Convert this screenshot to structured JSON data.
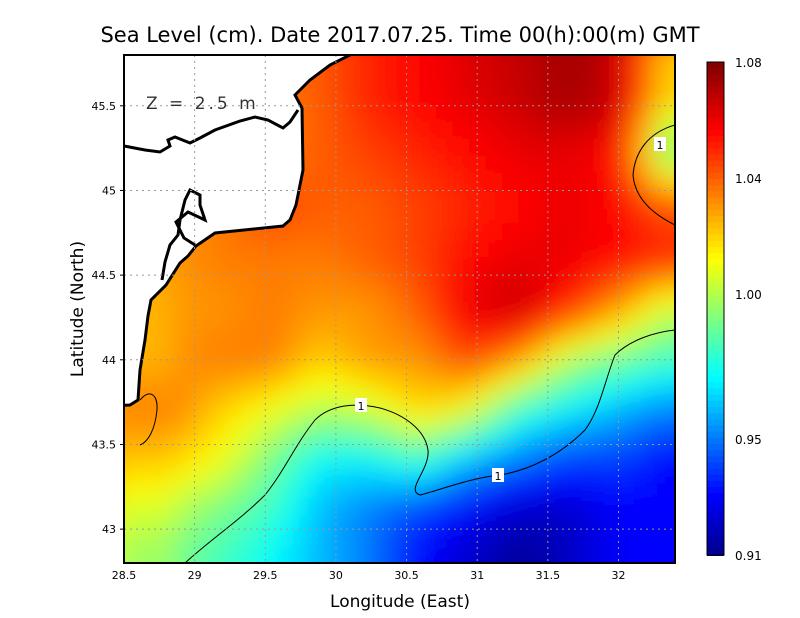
{
  "chart_data": {
    "type": "heatmap",
    "title": "Sea Level (cm). Date 2017.07.25. Time 00(h):00(m) GMT",
    "xlabel": "Longitude (East)",
    "ylabel": "Latitude (North)",
    "annotation": "Z = 2.5 m",
    "contour_label": "1",
    "xlim": [
      28.5,
      32.4
    ],
    "ylim": [
      42.8,
      45.8
    ],
    "xticks": [
      "28.5",
      "29",
      "29.5",
      "30",
      "30.5",
      "31",
      "31.5",
      "32"
    ],
    "xtick_values": [
      28.5,
      29,
      29.5,
      30,
      30.5,
      31,
      31.5,
      32
    ],
    "yticks": [
      "45.5",
      "45",
      "44.5",
      "44",
      "43.5",
      "43"
    ],
    "ytick_values": [
      45.5,
      45,
      44.5,
      44,
      43.5,
      43
    ],
    "grid": true,
    "colorbar": {
      "range": [
        0.91,
        1.08
      ],
      "ticks": [
        "1.08",
        "1.04",
        "1.00",
        "0.95",
        "0.91"
      ],
      "tick_values": [
        1.08,
        1.04,
        1.0,
        0.95,
        0.91
      ],
      "colormap": "jet"
    },
    "x": [
      28.5,
      28.85,
      29.2,
      29.55,
      29.9,
      30.25,
      30.6,
      30.95,
      31.3,
      31.65,
      32.0,
      32.4
    ],
    "y": [
      45.8,
      45.5,
      45.2,
      44.9,
      44.6,
      44.3,
      44.0,
      43.7,
      43.4,
      43.1,
      42.8
    ],
    "z": [
      [
        1.03,
        1.03,
        1.03,
        1.035,
        1.045,
        1.055,
        1.06,
        1.07,
        1.075,
        1.08,
        1.075,
        1.07
      ],
      [
        1.03,
        1.03,
        1.03,
        1.035,
        1.04,
        1.05,
        1.055,
        1.06,
        1.065,
        1.072,
        1.065,
        1.0
      ],
      [
        1.03,
        1.03,
        1.03,
        1.035,
        1.04,
        1.045,
        1.05,
        1.055,
        1.06,
        1.06,
        1.055,
        0.98
      ],
      [
        1.03,
        1.03,
        1.035,
        1.045,
        1.04,
        1.04,
        1.045,
        1.05,
        1.055,
        1.06,
        1.055,
        1.04
      ],
      [
        1.02,
        1.03,
        1.035,
        1.035,
        1.035,
        1.04,
        1.045,
        1.055,
        1.06,
        1.06,
        1.055,
        1.05
      ],
      [
        1.0,
        1.03,
        1.03,
        1.035,
        1.03,
        1.03,
        1.04,
        1.06,
        1.068,
        1.05,
        1.03,
        1.0
      ],
      [
        1.0,
        1.03,
        1.035,
        1.035,
        1.02,
        1.03,
        1.03,
        1.045,
        1.03,
        1.0,
        0.99,
        0.98
      ],
      [
        1.03,
        1.035,
        1.02,
        1.01,
        1.0,
        1.005,
        1.02,
        1.01,
        0.98,
        0.97,
        0.96,
        0.95
      ],
      [
        1.03,
        1.02,
        1.01,
        0.99,
        0.97,
        0.97,
        0.98,
        0.96,
        0.95,
        0.94,
        0.94,
        0.93
      ],
      [
        1.03,
        1.0,
        0.99,
        0.98,
        0.96,
        0.95,
        0.94,
        0.93,
        0.92,
        0.92,
        0.93,
        0.93
      ],
      [
        1.02,
        0.99,
        0.98,
        0.97,
        0.96,
        0.95,
        0.93,
        0.92,
        0.91,
        0.92,
        0.93,
        0.93
      ]
    ]
  }
}
